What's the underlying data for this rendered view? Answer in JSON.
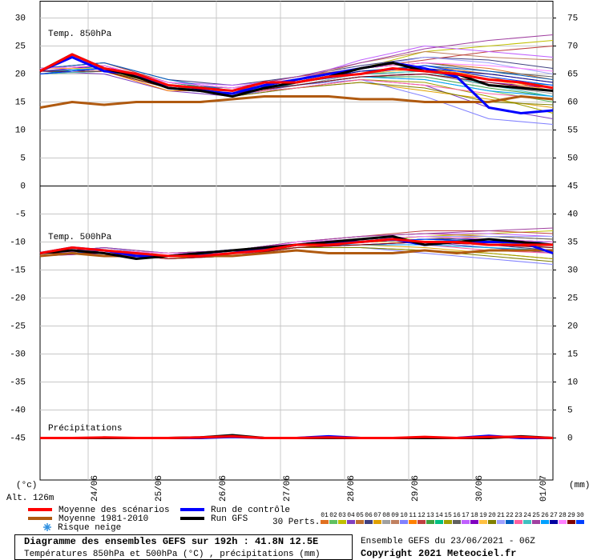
{
  "chart_data": {
    "type": "line",
    "panel_labels": [
      "Temp. 850hPa",
      "Temp. 500hPa",
      "Précipitations"
    ],
    "y_unit": "(°c)",
    "y2_unit": "(mm)",
    "altitude": "Alt. 126m",
    "x": [
      0,
      12,
      24,
      36,
      48,
      60,
      72,
      84,
      96,
      108,
      120,
      132,
      144,
      156,
      168,
      180,
      192
    ],
    "pert_x": [
      0,
      24,
      48,
      72,
      96,
      120,
      144,
      168,
      192
    ],
    "xlim": [
      0,
      192
    ],
    "xticks": [
      {
        "value": 18,
        "label": "24/06"
      },
      {
        "value": 42,
        "label": "25/06"
      },
      {
        "value": 66,
        "label": "26/06"
      },
      {
        "value": 90,
        "label": "27/06"
      },
      {
        "value": 114,
        "label": "28/06"
      },
      {
        "value": 138,
        "label": "29/06"
      },
      {
        "value": 162,
        "label": "30/06"
      },
      {
        "value": 186,
        "label": "01/07"
      }
    ],
    "ylim": [
      -52.5,
      33
    ],
    "yticks": [
      30,
      25,
      20,
      15,
      10,
      5,
      0,
      -5,
      -10,
      -15,
      -20,
      -25,
      -30,
      -35,
      -40,
      -45
    ],
    "y2lim": [
      -7.5,
      78
    ],
    "y2ticks": [
      75,
      70,
      65,
      60,
      55,
      50,
      45,
      40,
      35,
      30,
      25,
      20,
      15,
      10,
      5,
      0
    ],
    "grid": true,
    "series": [
      {
        "name": "Moyenne 1981-2010",
        "color": "#b05a10",
        "t850": [
          14,
          15,
          14.5,
          15,
          15,
          15,
          15.5,
          16,
          16,
          16,
          15.5,
          15.5,
          15,
          15,
          15,
          16,
          15.5
        ],
        "t500": [
          -12.5,
          -12,
          -12.5,
          -12.5,
          -12.5,
          -12.5,
          -12.5,
          -12,
          -11.5,
          -12,
          -12,
          -12,
          -11.5,
          -12,
          -11.5,
          -11.5,
          -11.5
        ]
      },
      {
        "name": "Run de contrôle",
        "color": "#0000ff",
        "t850": [
          20.5,
          23,
          20.5,
          20,
          17.5,
          17,
          16.5,
          18,
          19,
          20,
          21,
          22,
          21,
          19.5,
          14,
          13,
          13.5
        ],
        "t500": [
          -12,
          -11,
          -11.5,
          -12.5,
          -12.5,
          -12,
          -11.5,
          -11.5,
          -10.5,
          -10,
          -10,
          -9.5,
          -10.5,
          -10,
          -10,
          -10,
          -12
        ],
        "precip": [
          0,
          0,
          0,
          0,
          0,
          0,
          0.2,
          0,
          0,
          0.3,
          0,
          0,
          0,
          0,
          0.4,
          0,
          0
        ]
      },
      {
        "name": "Run GFS",
        "color": "#000000",
        "t850": [
          20.5,
          23.5,
          21,
          19.5,
          17.5,
          17,
          16,
          17.5,
          18.5,
          19.5,
          21,
          22,
          20.5,
          20,
          18,
          17.5,
          17
        ],
        "t500": [
          -12,
          -11.5,
          -12,
          -13,
          -12.5,
          -12,
          -11.5,
          -11,
          -10.5,
          -10,
          -9.5,
          -9,
          -10.5,
          -10,
          -9.5,
          -10,
          -10.5
        ],
        "precip": [
          0,
          0,
          0,
          0,
          0,
          0.1,
          0.5,
          0,
          0,
          0,
          0,
          0,
          0,
          0,
          0,
          0.3,
          0
        ]
      },
      {
        "name": "Moyenne des scénarios",
        "color": "#ff0000",
        "t850": [
          20.5,
          23.5,
          21,
          20,
          18,
          17.5,
          17,
          18.5,
          18.5,
          19.5,
          20,
          21,
          20.5,
          20,
          19,
          18.5,
          17.5
        ],
        "t500": [
          -12,
          -11,
          -11.5,
          -12,
          -12.5,
          -12.5,
          -12,
          -11.5,
          -10.5,
          -10.5,
          -10,
          -9.5,
          -10,
          -10,
          -10.5,
          -10.5,
          -10.5
        ],
        "precip": [
          0,
          0,
          0.1,
          0,
          0,
          0.1,
          0.3,
          0,
          0,
          0.1,
          0,
          0,
          0.2,
          0,
          0.2,
          0.2,
          0
        ]
      }
    ],
    "snow_label": "Risque neige",
    "pert_label": "30 Perts.",
    "perturbations": [
      {
        "name": "01",
        "color": "#e07020",
        "t850": [
          20.5,
          21.5,
          18.5,
          17,
          19,
          21,
          22,
          21,
          19
        ],
        "t500": [
          -12,
          -11.5,
          -12.5,
          -12,
          -10.5,
          -10,
          -9.5,
          -9.5,
          -10
        ]
      },
      {
        "name": "02",
        "color": "#60c060",
        "t850": [
          20,
          20.5,
          17.5,
          16.5,
          18,
          19.5,
          19,
          17,
          15
        ],
        "t500": [
          -12,
          -11,
          -12,
          -11.5,
          -10,
          -9.5,
          -9,
          -10,
          -11
        ]
      },
      {
        "name": "03",
        "color": "#c0c000",
        "t850": [
          21,
          21,
          18,
          17.5,
          19,
          21,
          24,
          25,
          26
        ],
        "t500": [
          -12.5,
          -11.5,
          -13,
          -12,
          -11,
          -10,
          -9,
          -8.5,
          -8
        ]
      },
      {
        "name": "04",
        "color": "#8040c0",
        "t850": [
          20.5,
          20,
          17,
          16,
          17.5,
          19,
          18,
          14,
          12
        ],
        "t500": [
          -12,
          -12,
          -12.5,
          -12.5,
          -10.5,
          -10.5,
          -10,
          -11,
          -12
        ]
      },
      {
        "name": "05",
        "color": "#c07030",
        "t850": [
          20,
          21,
          18.5,
          17,
          18.5,
          20,
          21.5,
          20,
          18.5
        ],
        "t500": [
          -12,
          -11.5,
          -12,
          -11.5,
          -10,
          -9,
          -8.5,
          -9,
          -9.5
        ]
      },
      {
        "name": "06",
        "color": "#404080",
        "t850": [
          21,
          22,
          19,
          18,
          19.5,
          21.5,
          23,
          22.5,
          21
        ],
        "t500": [
          -12.5,
          -11,
          -12.5,
          -12,
          -10.5,
          -10,
          -10,
          -10.5,
          -11.5
        ]
      },
      {
        "name": "07",
        "color": "#e0a000",
        "t850": [
          20.5,
          20.5,
          17.5,
          16.5,
          17.5,
          18.5,
          17,
          15.5,
          14
        ],
        "t500": [
          -12,
          -11.5,
          -13,
          -12.5,
          -11,
          -10.5,
          -11,
          -12,
          -13
        ]
      },
      {
        "name": "08",
        "color": "#a0a0a0",
        "t850": [
          20,
          21,
          18,
          17.5,
          18,
          20,
          20,
          18,
          16.5
        ],
        "t500": [
          -12,
          -11.5,
          -12.5,
          -12,
          -10,
          -9.5,
          -9,
          -9.5,
          -10
        ]
      },
      {
        "name": "09",
        "color": "#c08060",
        "t850": [
          21,
          21.5,
          18.5,
          17,
          19,
          22,
          24,
          23,
          22.5
        ],
        "t500": [
          -12.5,
          -12,
          -12.5,
          -11.5,
          -10.5,
          -10,
          -9.5,
          -9,
          -9
        ]
      },
      {
        "name": "10",
        "color": "#8080ff",
        "t850": [
          20.5,
          21,
          18,
          16,
          18,
          19,
          16,
          12,
          11
        ],
        "t500": [
          -12,
          -11,
          -12,
          -12,
          -11,
          -11,
          -12,
          -13,
          -14
        ]
      },
      {
        "name": "11",
        "color": "#ff8000",
        "t850": [
          20,
          20.5,
          17,
          17,
          18.5,
          20.5,
          21,
          19.5,
          17
        ],
        "t500": [
          -12,
          -11.5,
          -12.5,
          -12,
          -10.5,
          -9.5,
          -9,
          -9.5,
          -10.5
        ]
      },
      {
        "name": "12",
        "color": "#c04040",
        "t850": [
          21,
          22,
          18.5,
          17.5,
          19.5,
          21,
          22.5,
          24,
          25
        ],
        "t500": [
          -12.5,
          -11.5,
          -12,
          -11.5,
          -10,
          -9,
          -8,
          -8,
          -8.5
        ]
      },
      {
        "name": "13",
        "color": "#40a040",
        "t850": [
          20.5,
          21,
          18,
          16.5,
          18,
          19.5,
          19.5,
          17.5,
          16
        ],
        "t500": [
          -12,
          -12,
          -13,
          -12.5,
          -11,
          -10.5,
          -10.5,
          -11,
          -11.5
        ]
      },
      {
        "name": "14",
        "color": "#00c080",
        "t850": [
          20,
          21.5,
          18.5,
          17,
          18.5,
          20,
          20.5,
          19,
          18
        ],
        "t500": [
          -12,
          -11,
          -12.5,
          -12,
          -10.5,
          -10,
          -9.5,
          -10,
          -10.5
        ]
      },
      {
        "name": "15",
        "color": "#a0a000",
        "t850": [
          21,
          21,
          17.5,
          16.5,
          17.5,
          19,
          18.5,
          16,
          13
        ],
        "t500": [
          -12.5,
          -11.5,
          -12.5,
          -12,
          -11,
          -11,
          -11.5,
          -12,
          -13
        ]
      },
      {
        "name": "16",
        "color": "#606060",
        "t850": [
          20.5,
          20.5,
          18,
          17.5,
          19,
          21,
          22,
          20.5,
          19.5
        ],
        "t500": [
          -12,
          -11.5,
          -12,
          -11.5,
          -10,
          -9.5,
          -9,
          -9,
          -9.5
        ]
      },
      {
        "name": "17",
        "color": "#c060ff",
        "t850": [
          20,
          21,
          18.5,
          18,
          19,
          22.5,
          25,
          24,
          23
        ],
        "t500": [
          -12,
          -11,
          -12.5,
          -12,
          -10,
          -9,
          -8.5,
          -8.5,
          -9
        ]
      },
      {
        "name": "18",
        "color": "#8000c0",
        "t850": [
          20.5,
          21.5,
          18,
          16.5,
          18,
          19.5,
          20,
          18.5,
          17.5
        ],
        "t500": [
          -12.5,
          -12,
          -13,
          -12.5,
          -11,
          -10.5,
          -10,
          -10.5,
          -11
        ]
      },
      {
        "name": "19",
        "color": "#ffc040",
        "t850": [
          21,
          21,
          17.5,
          17,
          18.5,
          20,
          21,
          19,
          17
        ],
        "t500": [
          -12,
          -11.5,
          -12.5,
          -12,
          -10.5,
          -10,
          -10,
          -10,
          -10.5
        ]
      },
      {
        "name": "20",
        "color": "#808000",
        "t850": [
          20.5,
          20.5,
          18,
          16,
          17.5,
          18.5,
          17.5,
          15,
          14.5
        ],
        "t500": [
          -12,
          -11.5,
          -12,
          -12,
          -11,
          -11,
          -11.5,
          -12.5,
          -13.5
        ]
      },
      {
        "name": "21",
        "color": "#a0a0ff",
        "t850": [
          20,
          21,
          18.5,
          17.5,
          19,
          21,
          23,
          22,
          20
        ],
        "t500": [
          -12.5,
          -11,
          -12.5,
          -11.5,
          -10,
          -9.5,
          -9,
          -9,
          -9
        ]
      },
      {
        "name": "22",
        "color": "#0060c0",
        "t850": [
          21,
          22,
          19,
          17,
          18.5,
          20.5,
          21.5,
          20.5,
          19
        ],
        "t500": [
          -12,
          -11.5,
          -12.5,
          -12,
          -10.5,
          -10,
          -9.5,
          -10,
          -10
        ]
      },
      {
        "name": "23",
        "color": "#ff60a0",
        "t850": [
          20.5,
          21,
          18,
          16.5,
          17.5,
          19,
          18,
          16.5,
          15.5
        ],
        "t500": [
          -12,
          -12,
          -13,
          -12.5,
          -11,
          -10.5,
          -10.5,
          -11.5,
          -12
        ]
      },
      {
        "name": "24",
        "color": "#40c0c0",
        "t850": [
          20,
          20.5,
          17.5,
          17,
          18.5,
          20,
          20.5,
          18,
          16
        ],
        "t500": [
          -12.5,
          -11.5,
          -12.5,
          -12,
          -10.5,
          -10,
          -9.5,
          -10,
          -10.5
        ]
      },
      {
        "name": "25",
        "color": "#a040a0",
        "t850": [
          21,
          21.5,
          18.5,
          17.5,
          19.5,
          22,
          24.5,
          26,
          27
        ],
        "t500": [
          -12,
          -11,
          -12,
          -11.5,
          -10,
          -9,
          -8.5,
          -8,
          -7.5
        ]
      },
      {
        "name": "26",
        "color": "#00a0ff",
        "t850": [
          20.5,
          21,
          18,
          17,
          18,
          19.5,
          19,
          17,
          16
        ],
        "t500": [
          -12,
          -11.5,
          -12.5,
          -12,
          -10.5,
          -10.5,
          -10.5,
          -11,
          -11.5
        ]
      },
      {
        "name": "27",
        "color": "#0000a0",
        "t850": [
          20,
          21,
          18,
          16.5,
          18.5,
          20.5,
          21,
          20,
          18.5
        ],
        "t500": [
          -12.5,
          -11.5,
          -12.5,
          -12,
          -10.5,
          -10,
          -9.5,
          -9.5,
          -10
        ]
      },
      {
        "name": "28",
        "color": "#ff80ff",
        "t850": [
          21,
          21.5,
          18.5,
          17.5,
          19,
          21,
          22,
          21.5,
          20.5
        ],
        "t500": [
          -12,
          -11.5,
          -12,
          -12,
          -10,
          -9.5,
          -9,
          -9.5,
          -10
        ]
      },
      {
        "name": "29",
        "color": "#800000",
        "t850": [
          20.5,
          20.5,
          17.5,
          16.5,
          18,
          19.5,
          20,
          18.5,
          17
        ],
        "t500": [
          -12,
          -12,
          -13,
          -12.5,
          -11,
          -10.5,
          -10,
          -10.5,
          -11
        ]
      },
      {
        "name": "30",
        "color": "#0040ff",
        "t850": [
          20,
          21,
          18,
          17,
          18.5,
          20,
          21.5,
          19.5,
          18
        ],
        "t500": [
          -12.5,
          -11.5,
          -12.5,
          -12,
          -10.5,
          -10,
          -9.5,
          -10,
          -10.5
        ]
      }
    ],
    "footer_title": "Diagramme des ensembles GEFS sur 192h : 41.8N 12.5E",
    "footer_subtitle": "Températures 850hPa et 500hPa (°C) , précipitations (mm)",
    "run_info": "Ensemble GEFS du 23/06/2021 - 06Z",
    "copyright": "Copyright 2021 Meteociel.fr"
  }
}
